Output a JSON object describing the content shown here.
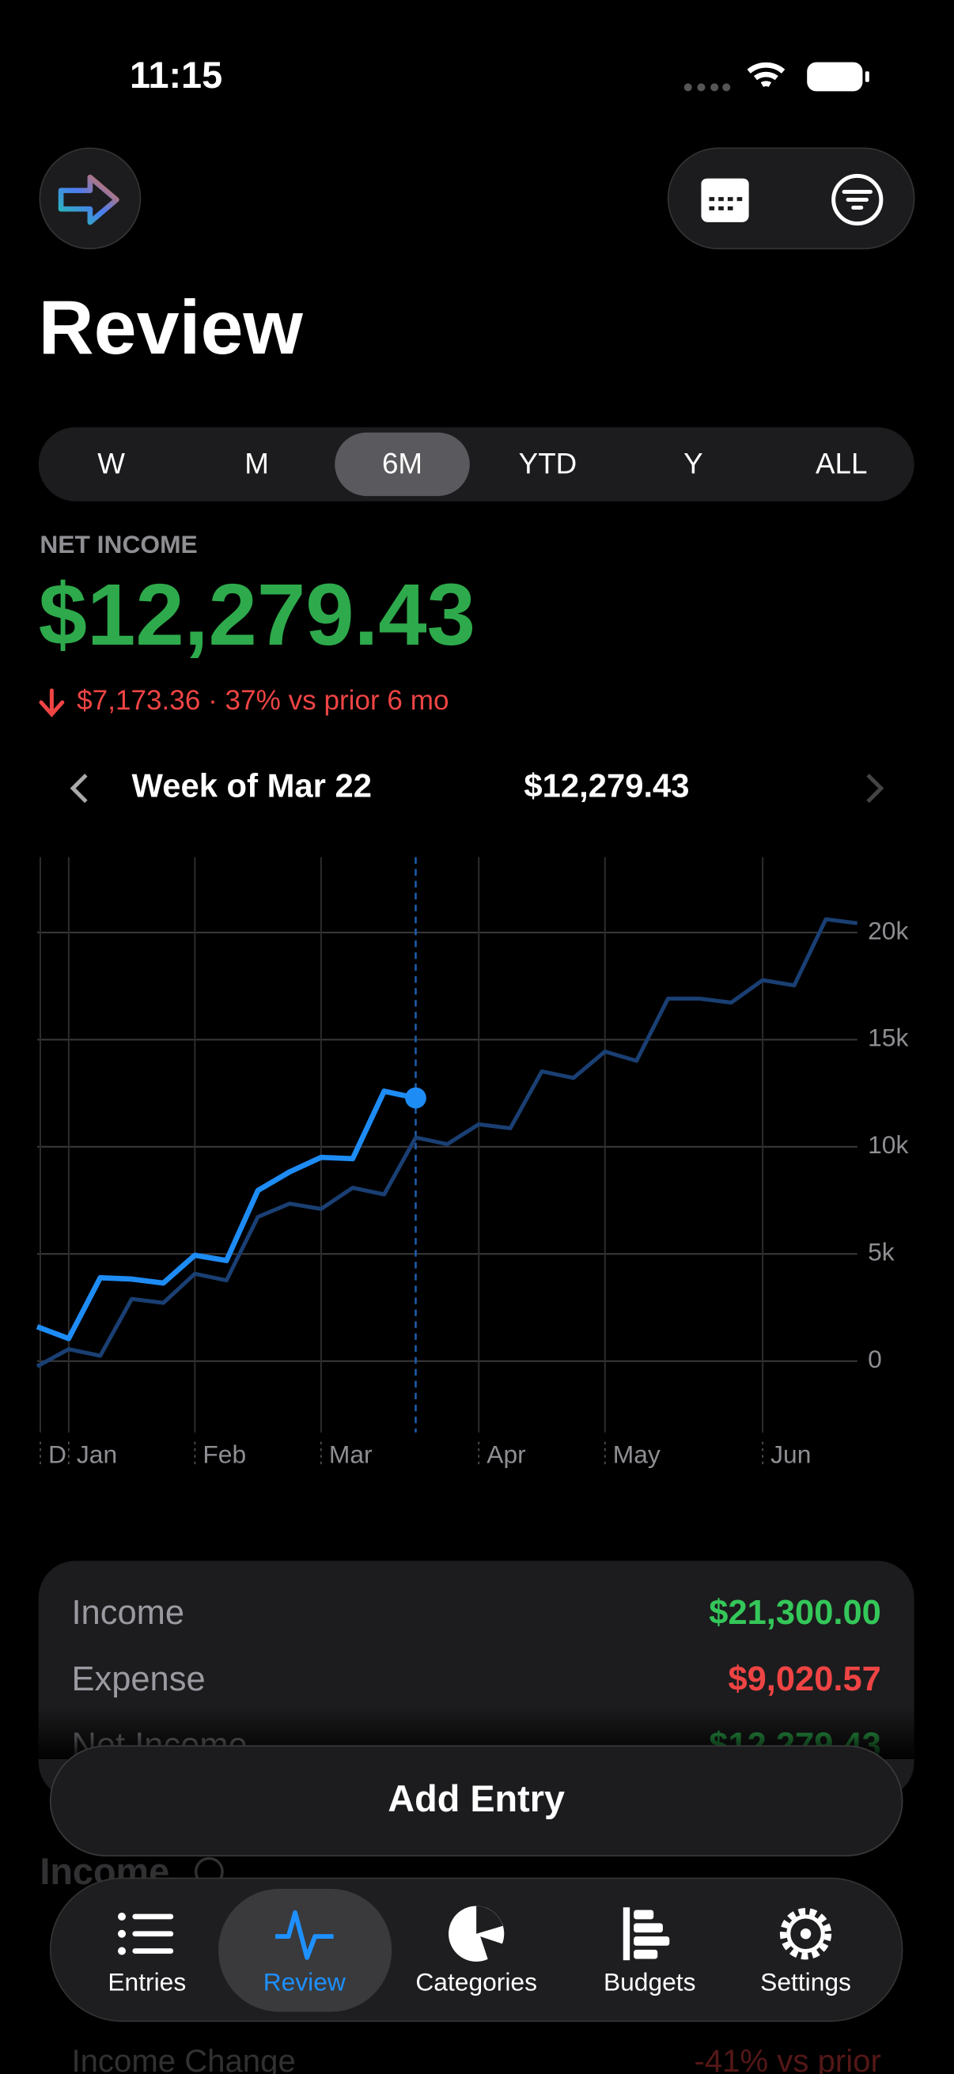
{
  "status_bar": {
    "time": "11:15"
  },
  "header": {
    "title": "Review"
  },
  "segments": {
    "options": [
      "W",
      "M",
      "6M",
      "YTD",
      "Y",
      "ALL"
    ],
    "selected": "6M"
  },
  "net_income": {
    "label": "NET INCOME",
    "value": "$12,279.43",
    "change": "$7,173.36 · 37% vs prior 6 mo"
  },
  "week_nav": {
    "label": "Week of Mar 22",
    "value": "$12,279.43"
  },
  "chart_data": {
    "type": "line",
    "x": [
      0,
      1,
      2,
      3,
      4,
      5,
      6,
      7,
      8,
      9,
      10,
      11,
      12,
      13,
      14,
      15,
      16,
      17,
      18,
      19,
      20,
      21,
      22,
      23,
      24,
      25,
      26
    ],
    "xlim": [
      0,
      26
    ],
    "xticks": [
      {
        "value": 0.1,
        "label": "D"
      },
      {
        "value": 1,
        "label": "Jan"
      },
      {
        "value": 5,
        "label": "Feb"
      },
      {
        "value": 9,
        "label": "Mar"
      },
      {
        "value": 14,
        "label": "Apr"
      },
      {
        "value": 18,
        "label": "May"
      },
      {
        "value": 23,
        "label": "Jun"
      }
    ],
    "ylim": [
      -3333,
      23519
    ],
    "yticks": [
      0,
      {
        "value": 5000,
        "label": "5k"
      },
      {
        "value": 10000,
        "label": "10k"
      },
      {
        "value": 15000,
        "label": "15k"
      },
      {
        "value": 20000,
        "label": "20k"
      }
    ],
    "grid": true,
    "selected_x": 12,
    "series": [
      {
        "color": "#1a3f73",
        "values": [
          -247,
          556,
          247,
          2901,
          2716,
          4074,
          3765,
          6728,
          7346,
          7099,
          8086,
          7778,
          10432,
          10123,
          11049,
          10864,
          13519,
          13210,
          14444,
          14012,
          16914,
          16914,
          16728,
          17778,
          17531,
          20617,
          20432
        ]
      },
      {
        "color": "#1e8cf5",
        "values": [
          1605,
          1049,
          3889,
          3827,
          3642,
          4938,
          4691,
          7963,
          8827,
          9506,
          9444,
          12593,
          12279,
          null,
          null,
          null,
          null,
          null,
          null,
          null,
          null,
          null,
          null,
          null,
          null,
          null,
          null
        ]
      }
    ]
  },
  "summary": {
    "rows": [
      {
        "label": "Income",
        "value": "$21,300.00",
        "color": "#34c759"
      },
      {
        "label": "Expense",
        "value": "$9,020.57",
        "color": "#ef4444"
      },
      {
        "label": "Net Income",
        "value": "$12,279.43",
        "color": "#34c759"
      }
    ]
  },
  "add_button": "Add Entry",
  "section": {
    "title": "Income",
    "rows": [
      {
        "label": "Income Change",
        "value": "-41% vs prior"
      }
    ]
  },
  "tabs": {
    "items": [
      "Entries",
      "Review",
      "Categories",
      "Budgets",
      "Settings"
    ],
    "selected": "Review"
  }
}
